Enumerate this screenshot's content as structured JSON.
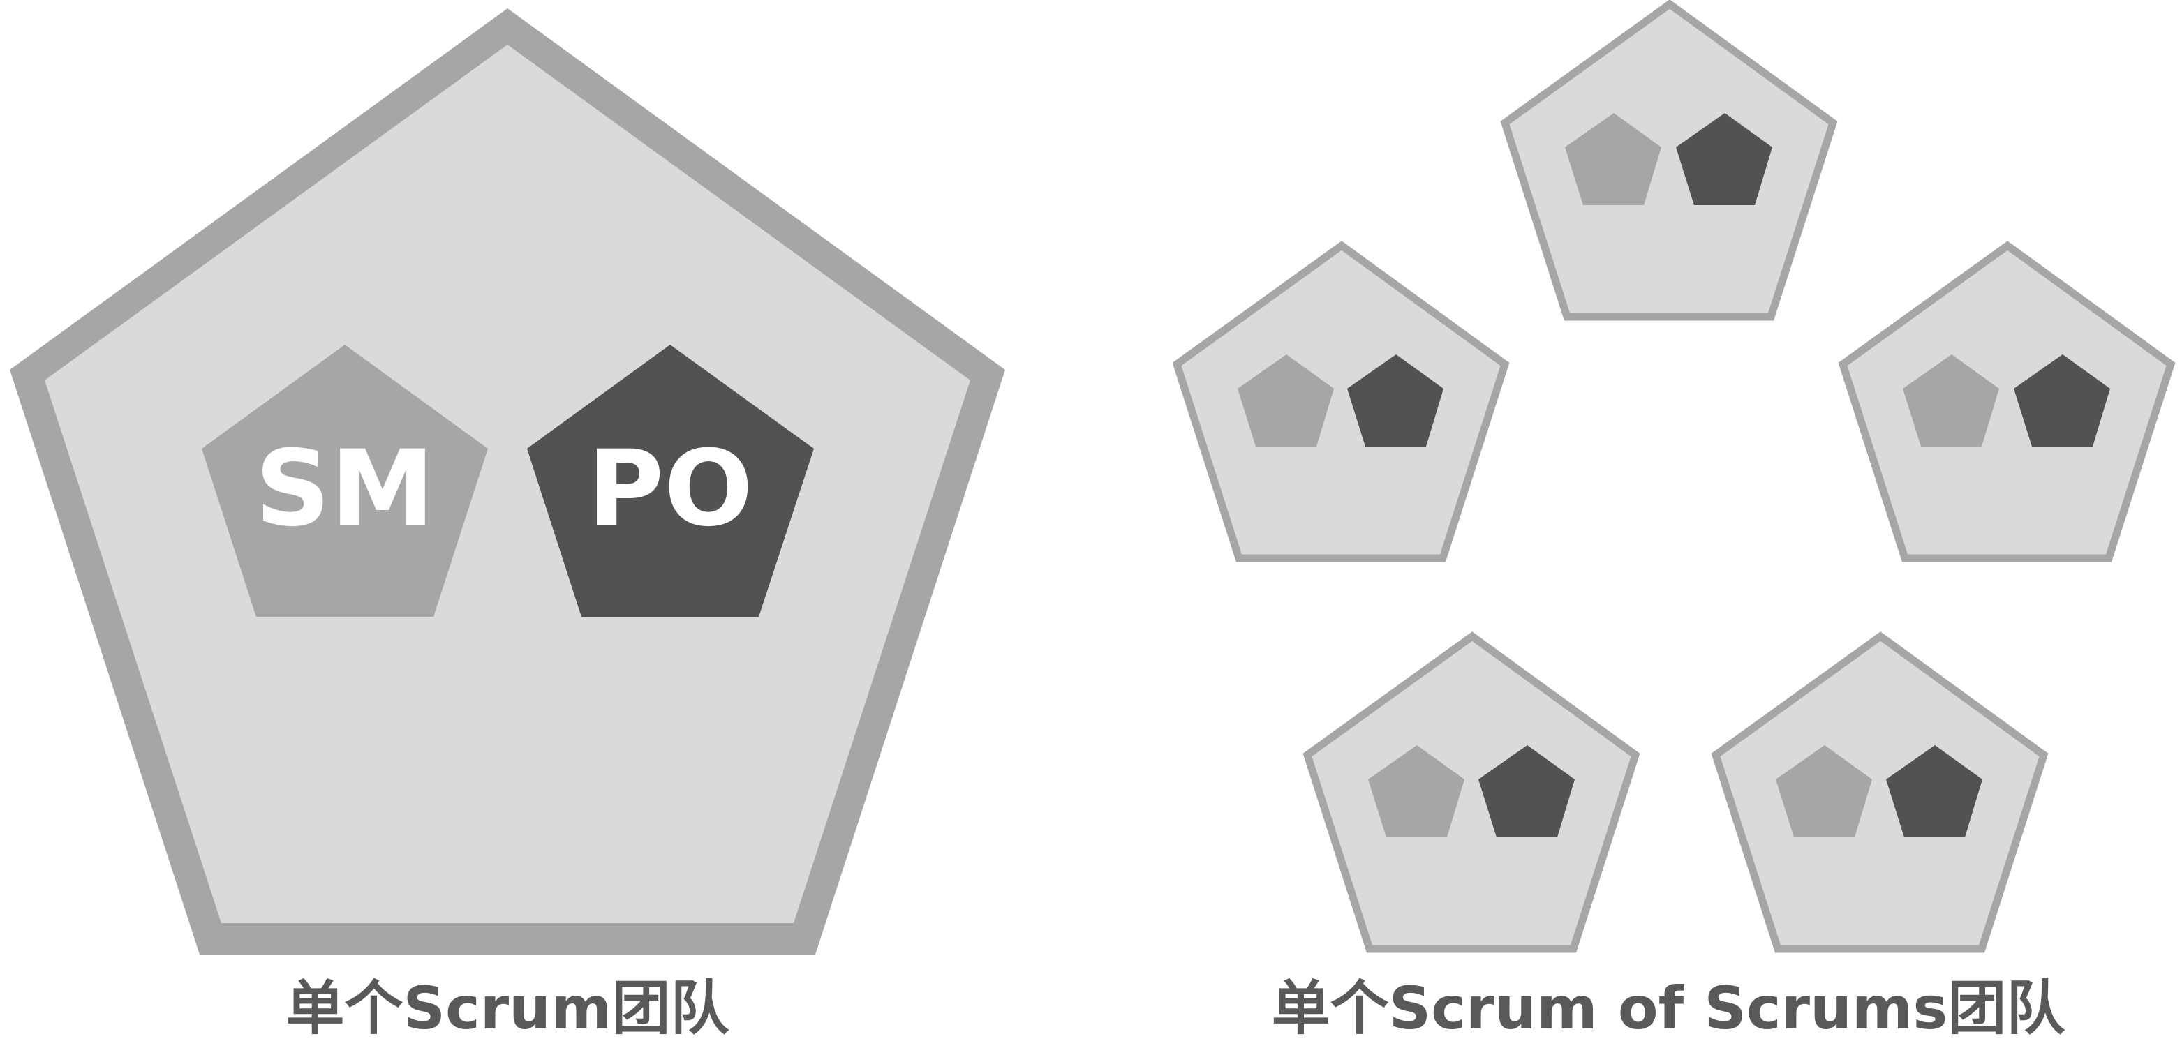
{
  "colors": {
    "background": "#ffffff",
    "team_fill": "#d9dada",
    "team_border": "#a6a6a6",
    "scrum_master": "#a6a6a6",
    "product_owner": "#515253",
    "label_text": "#ffffff",
    "caption_text": "#595959"
  },
  "diagram": {
    "single_team": {
      "sm_label": "SM",
      "po_label": "PO",
      "caption": "单个Scrum团队"
    },
    "scrum_of_scrums": {
      "team_count": 5,
      "caption": "单个Scrum of Scrums团队"
    }
  }
}
